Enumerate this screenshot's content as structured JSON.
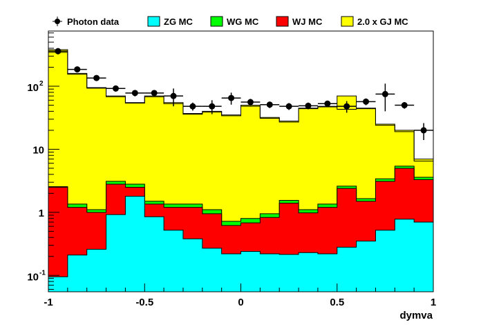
{
  "chart_data": {
    "type": "bar",
    "title": "",
    "xlabel": "dymva",
    "ylabel": "",
    "xlim": [
      -1,
      1
    ],
    "ylim": [
      0.055,
      750
    ],
    "yscale": "log",
    "grid": false,
    "legend_position": "top",
    "bin_edges": [
      -1.0,
      -0.9,
      -0.8,
      -0.7,
      -0.6,
      -0.5,
      -0.4,
      -0.3,
      -0.2,
      -0.1,
      0.0,
      0.1,
      0.2,
      0.3,
      0.4,
      0.5,
      0.6,
      0.7,
      0.8,
      0.9,
      1.0
    ],
    "x_ticks": [
      {
        "value": -1,
        "label": "-1"
      },
      {
        "value": -0.5,
        "label": "-0.5"
      },
      {
        "value": 0,
        "label": "0"
      },
      {
        "value": 0.5,
        "label": "0.5"
      },
      {
        "value": 1,
        "label": "1"
      }
    ],
    "y_ticks": [
      {
        "value": 0.1,
        "label": "10",
        "exp": "-1"
      },
      {
        "value": 1,
        "label": "1",
        "exp": ""
      },
      {
        "value": 10,
        "label": "10",
        "exp": ""
      },
      {
        "value": 100,
        "label": "10",
        "exp": "2"
      }
    ],
    "stack_series": [
      {
        "name": "ZG MC",
        "color": "#00ffff",
        "cumulative": [
          0.095,
          0.21,
          0.26,
          0.92,
          1.8,
          0.85,
          0.52,
          0.38,
          0.27,
          0.22,
          0.24,
          0.22,
          0.215,
          0.23,
          0.22,
          0.28,
          0.35,
          0.52,
          0.78,
          0.7
        ]
      },
      {
        "name": "WJ MC",
        "color": "#ff0000",
        "cumulative": [
          2.5,
          1.2,
          1.0,
          2.8,
          2.5,
          1.35,
          1.2,
          1.2,
          0.95,
          0.62,
          0.68,
          0.83,
          1.4,
          0.98,
          1.2,
          2.4,
          1.5,
          3.1,
          5.0,
          3.3
        ]
      },
      {
        "name": "WG MC",
        "color": "#00ff00",
        "cumulative": [
          2.55,
          1.35,
          1.1,
          3.1,
          2.8,
          1.5,
          1.35,
          1.35,
          1.1,
          0.72,
          0.8,
          0.95,
          1.55,
          1.1,
          1.35,
          2.6,
          1.65,
          3.4,
          5.4,
          3.6
        ]
      },
      {
        "name": "2.0 x GJ MC",
        "color": "#ffff00",
        "cumulative": [
          380,
          160,
          95,
          70,
          55,
          70,
          55,
          37,
          40,
          35,
          50,
          32,
          28,
          45,
          48,
          70,
          45,
          25,
          20,
          7
        ]
      }
    ],
    "mc_total_line": [
      345,
      155,
      93,
      68,
      54,
      68,
      53,
      36,
      39,
      34,
      48,
      31,
      27,
      44,
      47,
      43,
      44,
      24,
      19,
      6.5
    ],
    "data_series": {
      "name": "Photon data",
      "points": [
        {
          "x": -0.95,
          "y": 360,
          "err": 40
        },
        {
          "x": -0.85,
          "y": 185,
          "err": 18
        },
        {
          "x": -0.75,
          "y": 135,
          "err": 14
        },
        {
          "x": -0.65,
          "y": 92,
          "err": 10
        },
        {
          "x": -0.55,
          "y": 78,
          "err": 9
        },
        {
          "x": -0.45,
          "y": 78,
          "err": 9
        },
        {
          "x": -0.35,
          "y": 70,
          "err": 22
        },
        {
          "x": -0.25,
          "y": 48,
          "err": 7
        },
        {
          "x": -0.15,
          "y": 48,
          "err": 12
        },
        {
          "x": -0.05,
          "y": 65,
          "err": 14
        },
        {
          "x": 0.05,
          "y": 56,
          "err": 7
        },
        {
          "x": 0.15,
          "y": 51,
          "err": 6
        },
        {
          "x": 0.25,
          "y": 48,
          "err": 6
        },
        {
          "x": 0.35,
          "y": 49,
          "err": 6
        },
        {
          "x": 0.45,
          "y": 53,
          "err": 6
        },
        {
          "x": 0.55,
          "y": 48,
          "err": 10
        },
        {
          "x": 0.65,
          "y": 57,
          "err": 7
        },
        {
          "x": 0.75,
          "y": 75,
          "err": 35
        },
        {
          "x": 0.85,
          "y": 50,
          "err": 6
        },
        {
          "x": 0.95,
          "y": 20,
          "err": 6
        }
      ]
    }
  },
  "legend": {
    "data_label": "Photon data",
    "entries": [
      {
        "label": "ZG MC",
        "color": "#00ffff"
      },
      {
        "label": "WG MC",
        "color": "#00ff00"
      },
      {
        "label": "WJ MC",
        "color": "#ff0000"
      },
      {
        "label": "2.0 x GJ MC",
        "color": "#ffff00"
      }
    ]
  }
}
